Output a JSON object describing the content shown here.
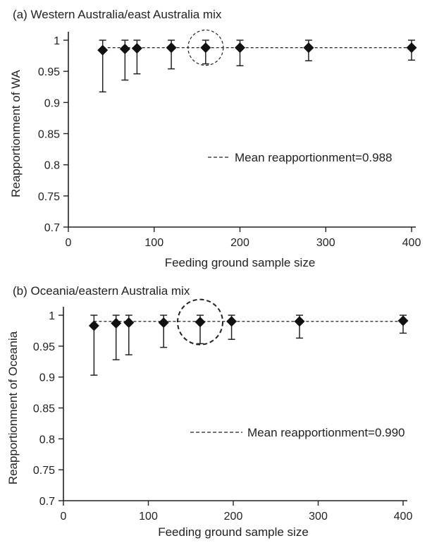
{
  "chart_data": [
    {
      "type": "scatter",
      "title": "(a) Western Australia/east Australia mix",
      "xlabel": "Feeding ground sample size",
      "ylabel": "Reapportionment of WA",
      "xlim": [
        0,
        400
      ],
      "ylim": [
        0.7,
        1
      ],
      "x_ticks": [
        0,
        100,
        200,
        300,
        400
      ],
      "x_tick_labels": [
        "0",
        "100",
        "200",
        "300",
        "400"
      ],
      "y_ticks": [
        0.7,
        0.75,
        0.8,
        0.85,
        0.9,
        0.95,
        1
      ],
      "y_tick_labels": [
        "0.7",
        "0.75",
        "0.8",
        "0.85",
        "0.9",
        "0.95",
        "1"
      ],
      "grid": false,
      "legend": "right",
      "legend_label": "Mean reapportionment=0.988",
      "mean_line": 0.988,
      "points": [
        {
          "x": 40,
          "y": 0.984,
          "low": 0.917,
          "high": 1.0
        },
        {
          "x": 66,
          "y": 0.986,
          "low": 0.936,
          "high": 1.0
        },
        {
          "x": 80,
          "y": 0.987,
          "low": 0.946,
          "high": 1.0
        },
        {
          "x": 120,
          "y": 0.988,
          "low": 0.954,
          "high": 1.0
        },
        {
          "x": 160,
          "y": 0.988,
          "low": 0.962,
          "high": 1.0
        },
        {
          "x": 200,
          "y": 0.988,
          "low": 0.959,
          "high": 1.0
        },
        {
          "x": 280,
          "y": 0.988,
          "low": 0.967,
          "high": 1.0
        },
        {
          "x": 400,
          "y": 0.988,
          "low": 0.968,
          "high": 1.0
        }
      ],
      "highlight_x": 160
    },
    {
      "type": "scatter",
      "title": "(b) Oceania/eastern Australia mix",
      "xlabel": "Feeding ground sample size",
      "ylabel": "Reapportionment of Oceania",
      "xlim": [
        0,
        400
      ],
      "ylim": [
        0.7,
        1
      ],
      "x_ticks": [
        0,
        100,
        200,
        300,
        400
      ],
      "x_tick_labels": [
        "0",
        "100",
        "200",
        "300",
        "400"
      ],
      "y_ticks": [
        0.7,
        0.75,
        0.8,
        0.85,
        0.9,
        0.95,
        1
      ],
      "y_tick_labels": [
        "0.7",
        "0.75",
        "0.8",
        "0.85",
        "0.9",
        "0.95",
        "1"
      ],
      "grid": false,
      "legend": "right",
      "legend_label": "Mean reapportionment=0.990",
      "mean_line": 0.99,
      "points": [
        {
          "x": 36,
          "y": 0.983,
          "low": 0.903,
          "high": 1.0
        },
        {
          "x": 62,
          "y": 0.987,
          "low": 0.928,
          "high": 1.0
        },
        {
          "x": 77,
          "y": 0.988,
          "low": 0.936,
          "high": 1.0
        },
        {
          "x": 118,
          "y": 0.988,
          "low": 0.948,
          "high": 1.0
        },
        {
          "x": 161,
          "y": 0.989,
          "low": 0.954,
          "high": 1.0
        },
        {
          "x": 198,
          "y": 0.99,
          "low": 0.961,
          "high": 1.0
        },
        {
          "x": 278,
          "y": 0.99,
          "low": 0.963,
          "high": 1.0
        },
        {
          "x": 400,
          "y": 0.991,
          "low": 0.971,
          "high": 1.0
        }
      ],
      "highlight_x": 161
    }
  ]
}
